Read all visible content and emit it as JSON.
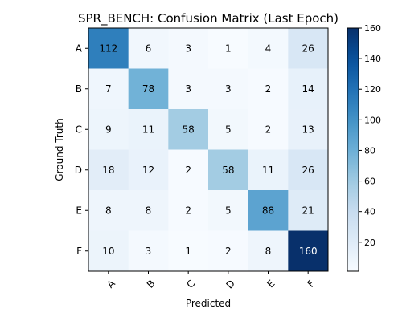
{
  "chart_data": {
    "type": "heatmap",
    "title": "SPR_BENCH: Confusion Matrix (Last Epoch)",
    "xlabel": "Predicted",
    "ylabel": "Ground Truth",
    "x_categories": [
      "A",
      "B",
      "C",
      "D",
      "E",
      "F"
    ],
    "y_categories": [
      "A",
      "B",
      "C",
      "D",
      "E",
      "F"
    ],
    "values": [
      [
        112,
        6,
        3,
        1,
        4,
        26
      ],
      [
        7,
        78,
        3,
        3,
        2,
        14
      ],
      [
        9,
        11,
        58,
        5,
        2,
        13
      ],
      [
        18,
        12,
        2,
        58,
        11,
        26
      ],
      [
        8,
        8,
        2,
        5,
        88,
        21
      ],
      [
        10,
        3,
        1,
        2,
        8,
        160
      ]
    ],
    "colormap": "Blues",
    "color_range": [
      1,
      160
    ],
    "colorbar_ticks": [
      20,
      40,
      60,
      80,
      100,
      120,
      140,
      160
    ],
    "grid": false,
    "legend": "colorbar-right"
  }
}
